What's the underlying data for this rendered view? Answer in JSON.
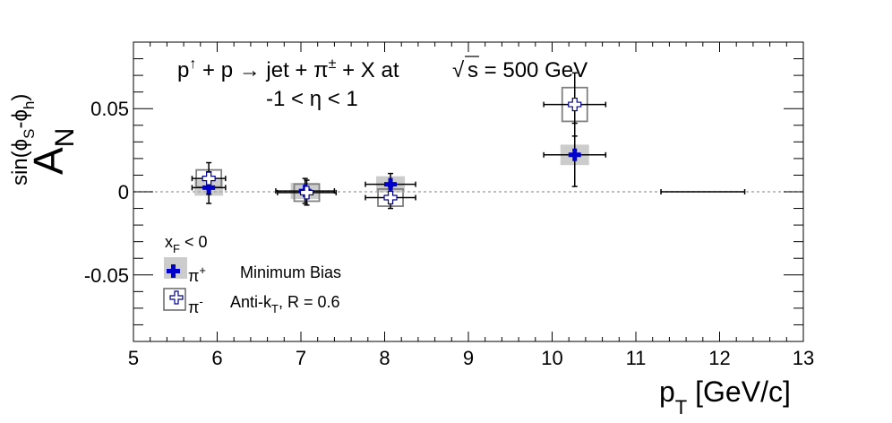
{
  "chart_data": {
    "type": "scatter",
    "title_parts": {
      "p": "p",
      "up": "↑",
      "plus1": " + p ",
      "arrow": "→",
      "jet": " jet + π",
      "pm": "±",
      "rest": " + X at",
      "sqrt": "√",
      "s_eq": "s = 500 GeV"
    },
    "subtitle": "-1 < η < 1",
    "xlabel": {
      "main": "p",
      "sub": "T",
      "unit": " [GeV/c]"
    },
    "ylabel": {
      "main": "A",
      "sub": "N",
      "sup": "sin(ϕ",
      "sup_s": "S",
      "sup_mid": "-ϕ",
      "sup_h": "h",
      "sup_end": ")"
    },
    "xlim": [
      5,
      13
    ],
    "ylim": [
      -0.09,
      0.09
    ],
    "xticks": [
      5,
      6,
      7,
      8,
      9,
      10,
      11,
      12,
      13
    ],
    "xtick_labels": [
      "5",
      "6",
      "7",
      "8",
      "9",
      "10",
      "11",
      "12",
      "13"
    ],
    "yticks": [
      -0.05,
      0,
      0.05
    ],
    "ytick_labels": [
      "-0.05",
      "0",
      "0.05"
    ],
    "zero_line": true,
    "series": [
      {
        "name": "π+",
        "marker": "filled-cross",
        "color": "#0000cc",
        "points": [
          {
            "x": 5.9,
            "y": 0.0025,
            "xerr": 0.2,
            "yerr": 0.0095,
            "sys": 0.002
          },
          {
            "x": 7.05,
            "y": 0.0005,
            "xerr": 0.35,
            "yerr": 0.0075,
            "sys": 0.002
          },
          {
            "x": 8.07,
            "y": 0.0045,
            "xerr": 0.3,
            "yerr": 0.0065,
            "sys": 0.002
          },
          {
            "x": 10.27,
            "y": 0.0222,
            "xerr": 0.37,
            "yerr": 0.019,
            "sys": 0.004
          }
        ]
      },
      {
        "name": "π-",
        "marker": "open-cross",
        "color": "#555555",
        "points": [
          {
            "x": 5.9,
            "y": 0.008,
            "xerr": 0.2,
            "yerr": 0.0095,
            "sys": 0.003
          },
          {
            "x": 7.07,
            "y": -0.0005,
            "xerr": 0.35,
            "yerr": 0.0075,
            "sys": 0.003
          },
          {
            "x": 8.07,
            "y": -0.0035,
            "xerr": 0.3,
            "yerr": 0.0065,
            "sys": 0.003
          },
          {
            "x": 10.27,
            "y": 0.0525,
            "xerr": 0.37,
            "yerr": 0.019,
            "sys": 0.008
          },
          {
            "x": 11.8,
            "y": 0.0,
            "xerr": 0.5,
            "yerr": 0.0,
            "sys": 0.0
          }
        ]
      }
    ],
    "legend": {
      "header": {
        "main": "x",
        "sub": "F",
        "rest": " < 0"
      },
      "entry1_label": {
        "main": "π",
        "sup": "+"
      },
      "entry2_label": {
        "main": "π",
        "sup": "-"
      },
      "note1": "Minimum Bias",
      "note2": {
        "main": "Anti-k",
        "sub": "T",
        "rest": ", R = 0.6"
      },
      "position": "bottom-left"
    },
    "grid": false
  }
}
